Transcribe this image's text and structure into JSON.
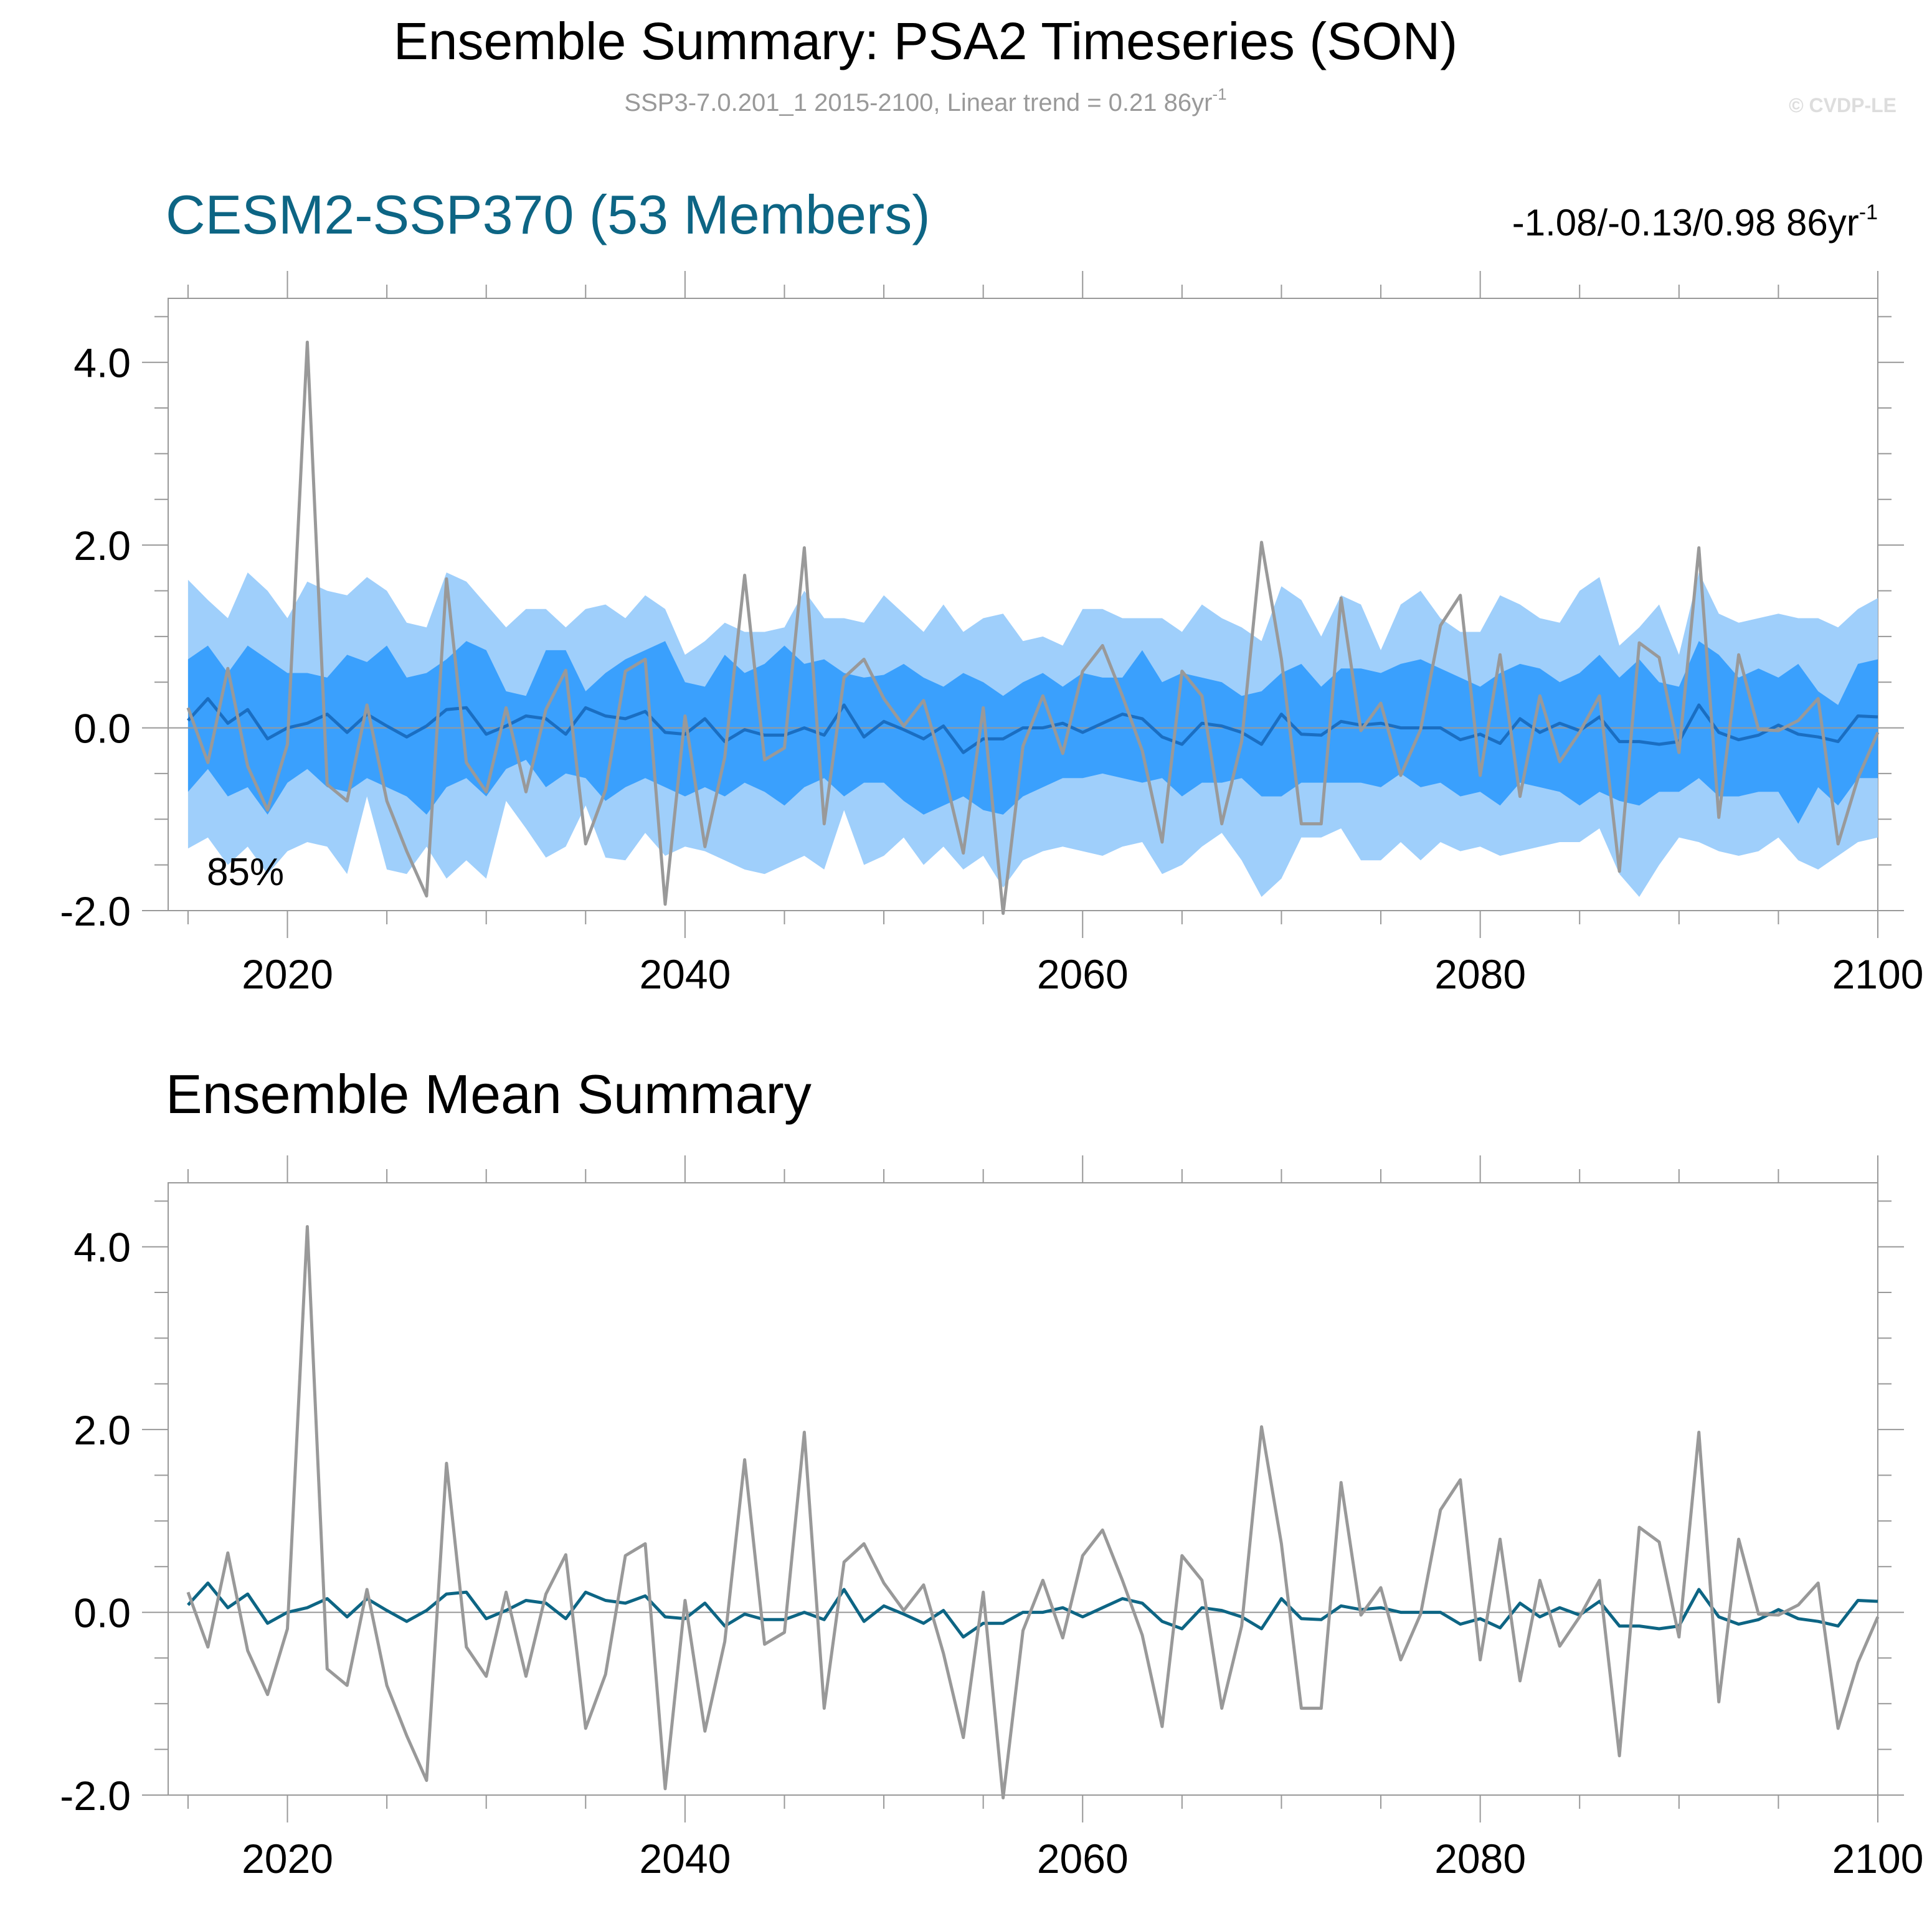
{
  "figure": {
    "title": "Ensemble Summary: PSA2 Timeseries (SON)",
    "subtitle": "SSP3-7.0.201_1 2015-2100, Linear trend = 0.21 86yr",
    "subtitle_sup": "-1",
    "watermark": "© CVDP-LE"
  },
  "colors": {
    "outer_band": "#9fcffb",
    "inner_band": "#3aa0fd",
    "ensemble_mean_top": "#1a6ec2",
    "ensemble_mean_bottom": "#0d6584",
    "observation": "#999999",
    "panel_title_top": "#0d6584"
  },
  "panels": {
    "top": {
      "title": "CESM2-SSP370 (53 Members)",
      "trend_text": "-1.08/-0.13/0.98 86yr",
      "trend_sup": "-1",
      "percent_label": "85%"
    },
    "bottom": {
      "title": "Ensemble Mean Summary"
    }
  },
  "axes": {
    "x_ticks": [
      "2020",
      "2040",
      "2060",
      "2080",
      "2100"
    ],
    "y_ticks": [
      "4.0",
      "2.0",
      "0.0",
      "-2.0"
    ]
  },
  "chart_data": {
    "type": "line",
    "x_range": [
      2014,
      2100
    ],
    "y_range": [
      -2.0,
      4.7
    ],
    "years": [
      2015,
      2016,
      2017,
      2018,
      2019,
      2020,
      2021,
      2022,
      2023,
      2024,
      2025,
      2026,
      2027,
      2028,
      2029,
      2030,
      2031,
      2032,
      2033,
      2034,
      2035,
      2036,
      2037,
      2038,
      2039,
      2040,
      2041,
      2042,
      2043,
      2044,
      2045,
      2046,
      2047,
      2048,
      2049,
      2050,
      2051,
      2052,
      2053,
      2054,
      2055,
      2056,
      2057,
      2058,
      2059,
      2060,
      2061,
      2062,
      2063,
      2064,
      2065,
      2066,
      2067,
      2068,
      2069,
      2070,
      2071,
      2072,
      2073,
      2074,
      2075,
      2076,
      2077,
      2078,
      2079,
      2080,
      2081,
      2082,
      2083,
      2084,
      2085,
      2086,
      2087,
      2088,
      2089,
      2090,
      2091,
      2092,
      2093,
      2094,
      2095,
      2096,
      2097,
      2098,
      2099,
      2100
    ],
    "series": [
      {
        "role": "observation",
        "values": [
          0.22,
          -0.38,
          0.65,
          -0.42,
          -0.9,
          -0.18,
          4.22,
          -0.62,
          -0.8,
          0.25,
          -0.8,
          -1.35,
          -1.84,
          1.63,
          -0.38,
          -0.7,
          0.22,
          -0.7,
          0.2,
          0.63,
          -1.27,
          -0.68,
          0.62,
          0.75,
          -1.93,
          0.13,
          -1.3,
          -0.32,
          1.67,
          -0.35,
          -0.22,
          1.97,
          -1.05,
          0.55,
          0.75,
          0.32,
          0.02,
          0.3,
          -0.45,
          -1.37,
          0.22,
          -2.03,
          -0.2,
          0.35,
          -0.28,
          0.62,
          0.9,
          0.35,
          -0.25,
          -1.25,
          0.62,
          0.35,
          -1.05,
          -0.15,
          2.03,
          0.75,
          -1.05,
          -1.05,
          1.42,
          -0.03,
          0.27,
          -0.52,
          -0.02,
          1.12,
          1.45,
          -0.52,
          0.8,
          -0.75,
          0.35,
          -0.37,
          -0.05,
          0.35,
          -1.57,
          0.93,
          0.77,
          -0.27,
          1.97,
          -0.98,
          0.8,
          -0.02,
          -0.03,
          0.08,
          0.32,
          -1.27,
          -0.55,
          -0.05
        ]
      },
      {
        "role": "ensemble_mean",
        "values": [
          0.08,
          0.32,
          0.05,
          0.2,
          -0.12,
          0.0,
          0.05,
          0.15,
          -0.05,
          0.15,
          0.02,
          -0.1,
          0.02,
          0.2,
          0.22,
          -0.07,
          0.02,
          0.13,
          0.1,
          -0.07,
          0.22,
          0.13,
          0.1,
          0.18,
          -0.05,
          -0.07,
          0.1,
          -0.15,
          -0.02,
          -0.08,
          -0.08,
          0.0,
          -0.08,
          0.25,
          -0.1,
          0.07,
          -0.02,
          -0.12,
          0.02,
          -0.27,
          -0.12,
          -0.12,
          0.0,
          0.0,
          0.05,
          -0.05,
          0.05,
          0.15,
          0.1,
          -0.1,
          -0.18,
          0.05,
          0.02,
          -0.05,
          -0.18,
          0.15,
          -0.07,
          -0.08,
          0.07,
          0.03,
          0.05,
          0.0,
          0.0,
          0.0,
          -0.13,
          -0.07,
          -0.17,
          0.1,
          -0.05,
          0.05,
          -0.03,
          0.12,
          -0.15,
          -0.15,
          -0.18,
          -0.15,
          0.25,
          -0.05,
          -0.13,
          -0.08,
          0.03,
          -0.07,
          -0.1,
          -0.15,
          0.13,
          0.12
        ]
      }
    ],
    "band_outer": {
      "upper": [
        1.62,
        1.4,
        1.2,
        1.7,
        1.5,
        1.2,
        1.6,
        1.5,
        1.45,
        1.65,
        1.5,
        1.15,
        1.1,
        1.7,
        1.6,
        1.35,
        1.1,
        1.3,
        1.3,
        1.1,
        1.3,
        1.35,
        1.2,
        1.45,
        1.3,
        0.8,
        0.95,
        1.15,
        1.05,
        1.05,
        1.1,
        1.5,
        1.2,
        1.2,
        1.15,
        1.45,
        1.25,
        1.05,
        1.35,
        1.05,
        1.2,
        1.25,
        0.95,
        1.0,
        0.9,
        1.3,
        1.3,
        1.2,
        1.2,
        1.2,
        1.05,
        1.35,
        1.2,
        1.1,
        0.95,
        1.55,
        1.4,
        1.0,
        1.45,
        1.35,
        0.85,
        1.35,
        1.5,
        1.2,
        1.05,
        1.05,
        1.45,
        1.35,
        1.2,
        1.15,
        1.5,
        1.65,
        0.9,
        1.1,
        1.35,
        0.8,
        1.7,
        1.25,
        1.15,
        1.2,
        1.25,
        1.2,
        1.2,
        1.1,
        1.3,
        1.42
      ],
      "lower": [
        -1.32,
        -1.2,
        -1.5,
        -1.3,
        -1.6,
        -1.35,
        -1.25,
        -1.3,
        -1.6,
        -0.75,
        -1.55,
        -1.6,
        -1.3,
        -1.65,
        -1.45,
        -1.65,
        -0.8,
        -1.1,
        -1.42,
        -1.3,
        -0.85,
        -1.42,
        -1.45,
        -1.15,
        -1.4,
        -1.3,
        -1.35,
        -1.45,
        -1.55,
        -1.6,
        -1.5,
        -1.4,
        -1.55,
        -0.9,
        -1.5,
        -1.4,
        -1.2,
        -1.5,
        -1.3,
        -1.55,
        -1.4,
        -1.75,
        -1.45,
        -1.35,
        -1.3,
        -1.35,
        -1.4,
        -1.3,
        -1.25,
        -1.6,
        -1.5,
        -1.3,
        -1.15,
        -1.45,
        -1.85,
        -1.65,
        -1.2,
        -1.2,
        -1.1,
        -1.45,
        -1.45,
        -1.25,
        -1.45,
        -1.25,
        -1.35,
        -1.3,
        -1.4,
        -1.35,
        -1.3,
        -1.25,
        -1.25,
        -1.1,
        -1.6,
        -1.85,
        -1.5,
        -1.2,
        -1.25,
        -1.35,
        -1.4,
        -1.35,
        -1.2,
        -1.45,
        -1.55,
        -1.4,
        -1.25,
        -1.2
      ]
    },
    "band_inner": {
      "upper": [
        0.75,
        0.9,
        0.6,
        0.9,
        0.75,
        0.6,
        0.6,
        0.55,
        0.8,
        0.72,
        0.9,
        0.55,
        0.6,
        0.75,
        0.95,
        0.85,
        0.4,
        0.35,
        0.85,
        0.85,
        0.4,
        0.6,
        0.75,
        0.85,
        0.95,
        0.5,
        0.45,
        0.8,
        0.6,
        0.7,
        0.9,
        0.7,
        0.75,
        0.6,
        0.55,
        0.58,
        0.7,
        0.55,
        0.45,
        0.6,
        0.5,
        0.35,
        0.5,
        0.6,
        0.45,
        0.6,
        0.55,
        0.55,
        0.85,
        0.5,
        0.6,
        0.55,
        0.5,
        0.35,
        0.4,
        0.6,
        0.7,
        0.45,
        0.65,
        0.65,
        0.6,
        0.7,
        0.75,
        0.65,
        0.55,
        0.45,
        0.6,
        0.7,
        0.65,
        0.5,
        0.6,
        0.8,
        0.55,
        0.75,
        0.5,
        0.45,
        0.95,
        0.8,
        0.55,
        0.65,
        0.55,
        0.7,
        0.4,
        0.25,
        0.7,
        0.75
      ],
      "lower": [
        -0.7,
        -0.45,
        -0.75,
        -0.65,
        -0.95,
        -0.6,
        -0.45,
        -0.65,
        -0.7,
        -0.55,
        -0.65,
        -0.75,
        -0.95,
        -0.65,
        -0.55,
        -0.75,
        -0.45,
        -0.35,
        -0.65,
        -0.5,
        -0.55,
        -0.8,
        -0.65,
        -0.55,
        -0.65,
        -0.75,
        -0.65,
        -0.75,
        -0.6,
        -0.7,
        -0.85,
        -0.65,
        -0.55,
        -0.75,
        -0.6,
        -0.6,
        -0.8,
        -0.95,
        -0.85,
        -0.75,
        -0.9,
        -0.95,
        -0.75,
        -0.65,
        -0.55,
        -0.55,
        -0.5,
        -0.55,
        -0.6,
        -0.55,
        -0.75,
        -0.6,
        -0.6,
        -0.55,
        -0.75,
        -0.75,
        -0.6,
        -0.6,
        -0.6,
        -0.6,
        -0.65,
        -0.5,
        -0.65,
        -0.6,
        -0.75,
        -0.7,
        -0.85,
        -0.6,
        -0.65,
        -0.7,
        -0.85,
        -0.7,
        -0.8,
        -0.85,
        -0.7,
        -0.7,
        -0.55,
        -0.75,
        -0.75,
        -0.7,
        -0.7,
        -1.05,
        -0.65,
        -0.85,
        -0.55,
        -0.55
      ]
    }
  }
}
